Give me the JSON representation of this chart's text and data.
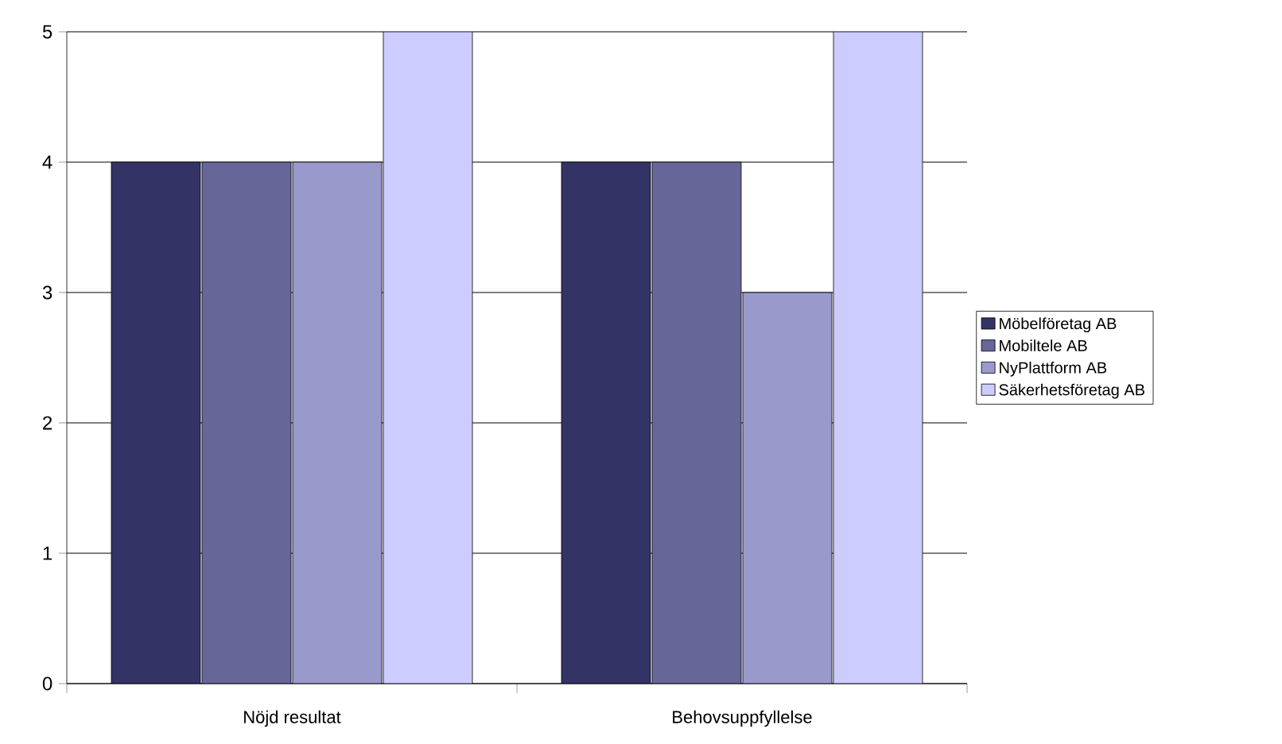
{
  "chart_data": {
    "type": "bar",
    "categories": [
      "Nöjd resultat",
      "Behovsuppfyllelse"
    ],
    "series": [
      {
        "name": "Möbelföretag AB",
        "color": "#333366",
        "values": [
          4,
          4
        ]
      },
      {
        "name": "Mobiltele AB",
        "color": "#666699",
        "values": [
          4,
          4
        ]
      },
      {
        "name": "NyPlattform AB",
        "color": "#9999cc",
        "values": [
          4,
          3
        ]
      },
      {
        "name": "Säkerhetsföretag AB",
        "color": "#ccccff",
        "values": [
          5,
          5
        ]
      }
    ],
    "ylim": [
      0,
      5
    ],
    "yticks": [
      0,
      1,
      2,
      3,
      4,
      5
    ],
    "grid": "y",
    "legend": "right"
  }
}
